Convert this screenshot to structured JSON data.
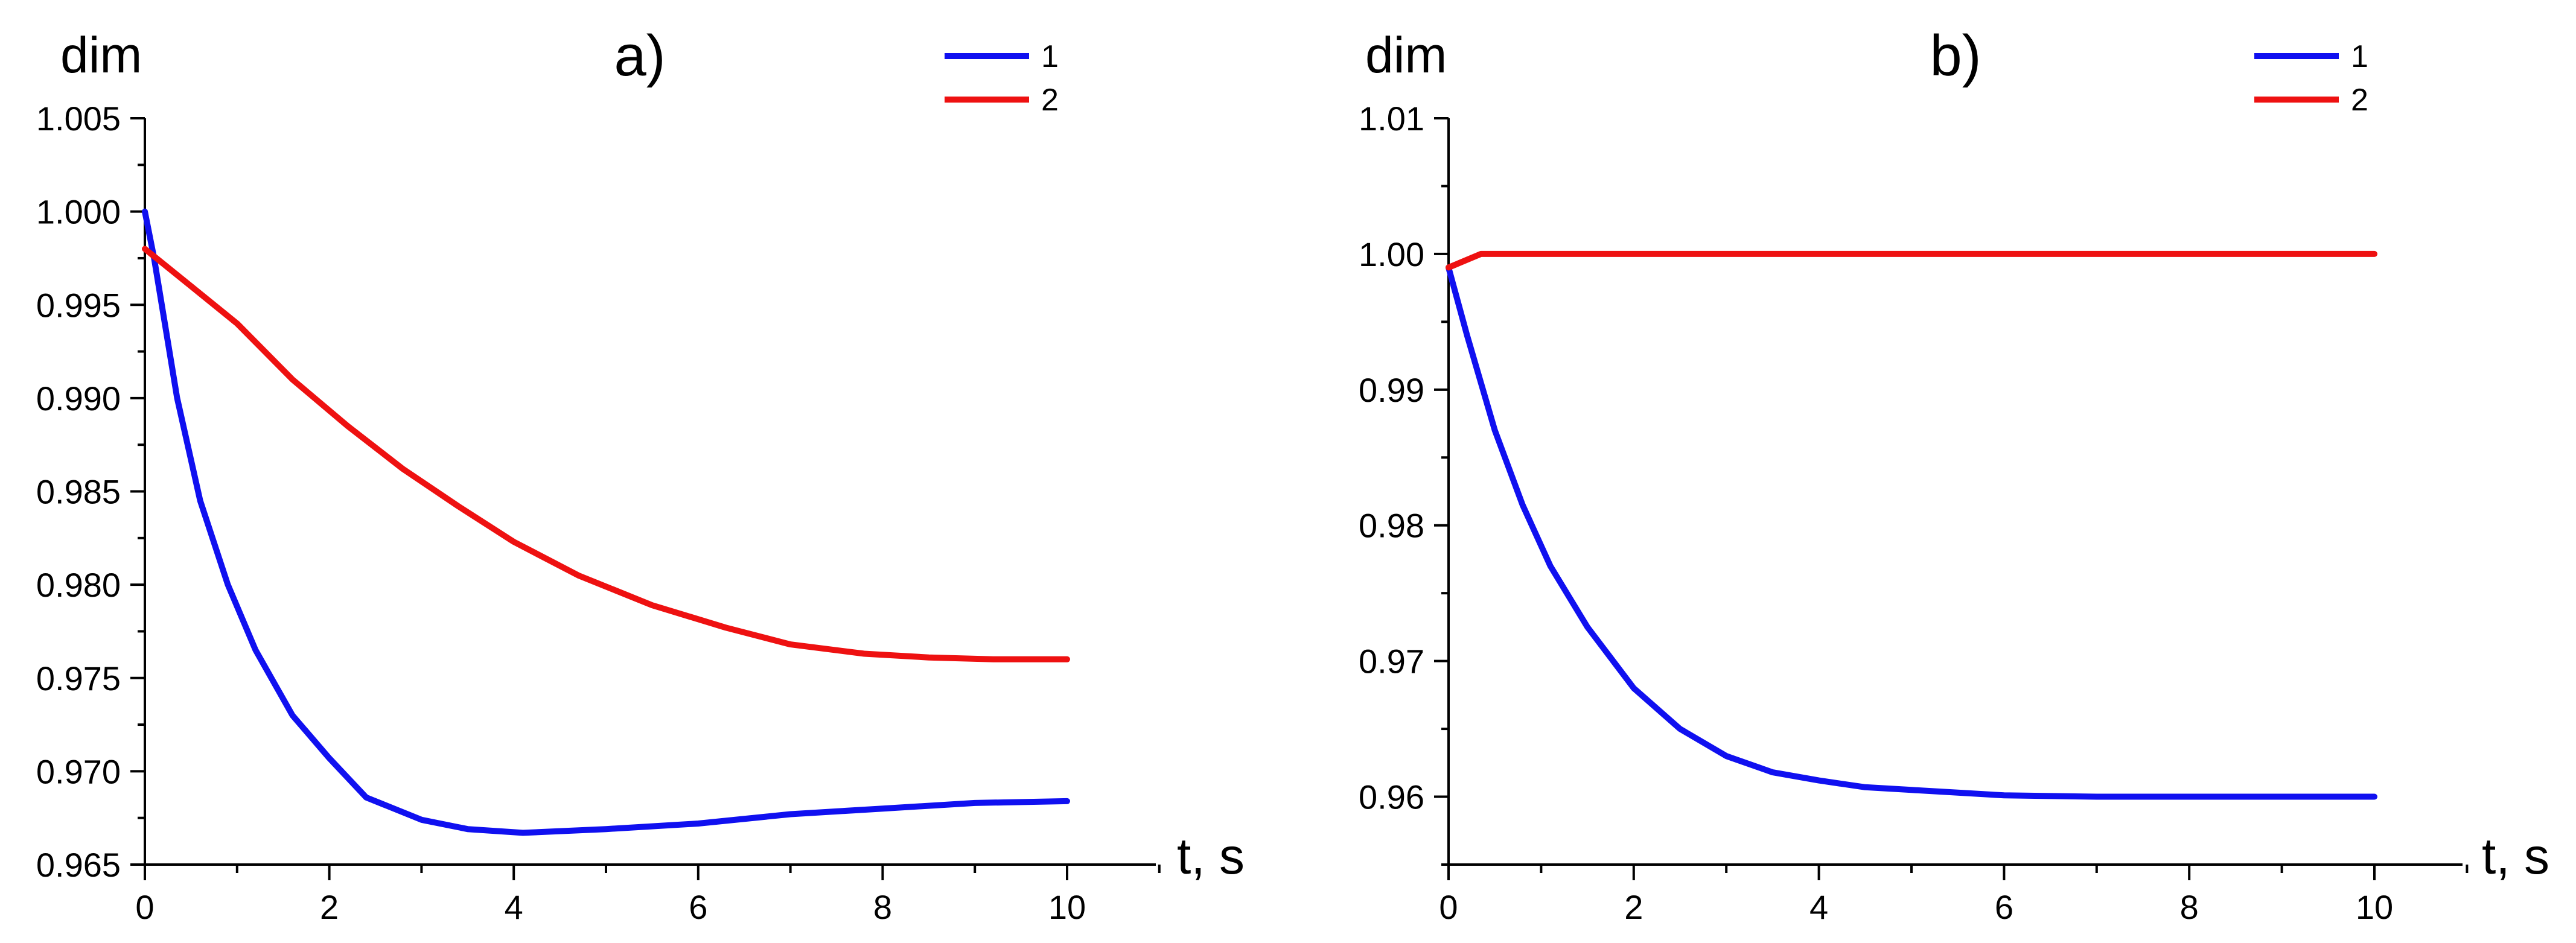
{
  "chart_data": [
    {
      "type": "line",
      "title": "a)",
      "ylabel": "dim",
      "xlabel": "t, s",
      "xlim": [
        0,
        10
      ],
      "ylim": [
        0.965,
        1.005
      ],
      "xticks": [
        0,
        2,
        4,
        6,
        8,
        10
      ],
      "yticks": [
        0.965,
        0.97,
        0.975,
        0.98,
        0.985,
        0.99,
        0.995,
        1.0,
        1.005
      ],
      "ytick_labels": [
        "0.965",
        "0.970",
        "0.975",
        "0.980",
        "0.985",
        "0.990",
        "0.995",
        "1.000",
        "1.005"
      ],
      "legend_position": "top-right",
      "series": [
        {
          "name": "1",
          "color": "#1010f0",
          "x": [
            0,
            0.1,
            0.35,
            0.6,
            0.9,
            1.2,
            1.6,
            2.0,
            2.4,
            3.0,
            3.5,
            4.1,
            5.0,
            6.0,
            7.0,
            8.0,
            9.0,
            10.0
          ],
          "y": [
            1.0,
            0.9975,
            0.99,
            0.9845,
            0.98,
            0.9765,
            0.973,
            0.9707,
            0.9686,
            0.9674,
            0.9669,
            0.9667,
            0.9669,
            0.9672,
            0.9677,
            0.968,
            0.9683,
            0.9684
          ]
        },
        {
          "name": "2",
          "color": "#ee1111",
          "x": [
            0,
            0.5,
            1.0,
            1.6,
            2.2,
            2.8,
            3.4,
            4.0,
            4.7,
            5.5,
            6.3,
            7.0,
            7.8,
            8.5,
            9.2,
            10.0
          ],
          "y": [
            0.998,
            0.996,
            0.994,
            0.991,
            0.9885,
            0.9862,
            0.9842,
            0.9823,
            0.9805,
            0.9789,
            0.9777,
            0.9768,
            0.9763,
            0.9761,
            0.976,
            0.976
          ]
        }
      ]
    },
    {
      "type": "line",
      "title": "b)",
      "ylabel": "dim",
      "xlabel": "t, s",
      "xlim": [
        0,
        10
      ],
      "ylim": [
        0.955,
        1.01
      ],
      "xticks": [
        0,
        2,
        4,
        6,
        8,
        10
      ],
      "yticks": [
        0.96,
        0.97,
        0.98,
        0.99,
        1.0,
        1.01
      ],
      "ytick_labels": [
        "0.96",
        "0.97",
        "0.98",
        "0.99",
        "1.00",
        "1.01"
      ],
      "legend_position": "top-right",
      "series": [
        {
          "name": "1",
          "color": "#1010f0",
          "x": [
            0,
            0.2,
            0.5,
            0.8,
            1.1,
            1.5,
            2.0,
            2.5,
            3.0,
            3.5,
            4.0,
            4.5,
            5.0,
            5.5,
            6.0,
            7.0,
            8.0,
            9.0,
            10.0
          ],
          "y": [
            0.999,
            0.994,
            0.987,
            0.9815,
            0.977,
            0.9725,
            0.968,
            0.965,
            0.963,
            0.9618,
            0.9612,
            0.9607,
            0.9605,
            0.9603,
            0.9601,
            0.96,
            0.96,
            0.96,
            0.96
          ]
        },
        {
          "name": "2",
          "color": "#ee1111",
          "x": [
            0,
            0.35,
            1,
            3,
            5,
            7,
            10
          ],
          "y": [
            0.999,
            1.0,
            1.0,
            1.0,
            1.0,
            1.0,
            1.0
          ]
        }
      ]
    }
  ]
}
